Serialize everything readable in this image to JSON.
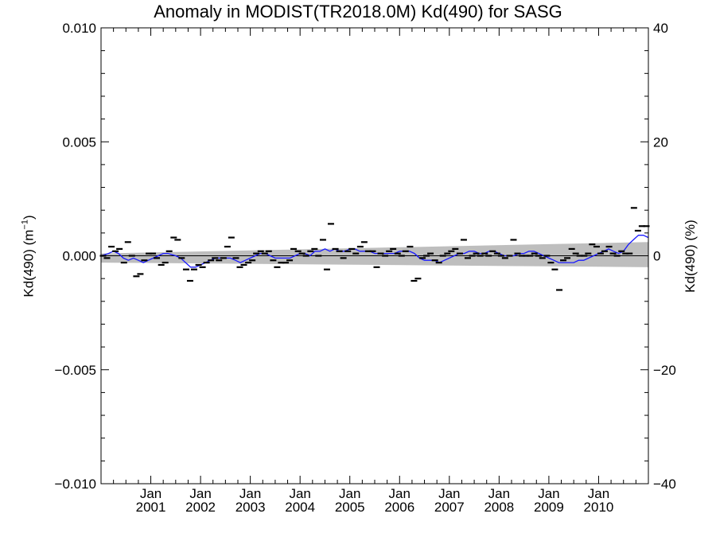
{
  "chart_data": {
    "type": "scatter",
    "title": "Anomaly in MODIST(TR2018.0M) Kd(490) for SASG",
    "ylabel_left": "Kd(490) (m",
    "ylabel_left_unit_exp": "−1",
    "ylabel_left_close": ")",
    "ylabel_right": "Kd(490) (%)",
    "xlim": [
      2000.0,
      2011.0
    ],
    "ylim_left": [
      -0.01,
      0.01
    ],
    "ylim_right": [
      -40,
      40
    ],
    "yticks_left": [
      {
        "value": 0.01,
        "label": "0.010"
      },
      {
        "value": 0.005,
        "label": "0.005"
      },
      {
        "value": 0.0,
        "label": "0.000"
      },
      {
        "value": -0.005,
        "label": "−0.005"
      },
      {
        "value": -0.01,
        "label": "−0.010"
      }
    ],
    "yticks_right": [
      {
        "value": 40,
        "label": "40"
      },
      {
        "value": 20,
        "label": "20"
      },
      {
        "value": 0,
        "label": "0"
      },
      {
        "value": -20,
        "label": "−20"
      },
      {
        "value": -40,
        "label": "−40"
      }
    ],
    "xticks": [
      {
        "value": 2001.0,
        "month": "Jan",
        "year": "2001"
      },
      {
        "value": 2002.0,
        "month": "Jan",
        "year": "2002"
      },
      {
        "value": 2003.0,
        "month": "Jan",
        "year": "2003"
      },
      {
        "value": 2004.0,
        "month": "Jan",
        "year": "2004"
      },
      {
        "value": 2005.0,
        "month": "Jan",
        "year": "2005"
      },
      {
        "value": 2006.0,
        "month": "Jan",
        "year": "2006"
      },
      {
        "value": 2007.0,
        "month": "Jan",
        "year": "2007"
      },
      {
        "value": 2008.0,
        "month": "Jan",
        "year": "2008"
      },
      {
        "value": 2009.0,
        "month": "Jan",
        "year": "2009"
      },
      {
        "value": 2010.0,
        "month": "Jan",
        "year": "2010"
      }
    ],
    "grid": false,
    "zero_line": {
      "value": 0.0,
      "color": "#000000"
    },
    "trend_band": {
      "x": [
        2000.0,
        2011.0
      ],
      "upper": [
        0.0001,
        0.0006
      ],
      "lower": [
        -0.0003,
        -0.0005
      ],
      "color": "#bebebe"
    },
    "monthly_anomalies": {
      "color": "#000000",
      "points": [
        [
          2000.04,
          0.0
        ],
        [
          2000.12,
          -0.0001
        ],
        [
          2000.21,
          0.0004
        ],
        [
          2000.29,
          0.0002
        ],
        [
          2000.37,
          0.0003
        ],
        [
          2000.46,
          -0.0003
        ],
        [
          2000.54,
          0.0006
        ],
        [
          2000.62,
          0.0
        ],
        [
          2000.71,
          -0.0009
        ],
        [
          2000.79,
          -0.0008
        ],
        [
          2000.87,
          -0.0002
        ],
        [
          2000.96,
          0.0001
        ],
        [
          2001.04,
          0.0001
        ],
        [
          2001.12,
          -0.0001
        ],
        [
          2001.21,
          -0.0004
        ],
        [
          2001.29,
          -0.0003
        ],
        [
          2001.37,
          0.0002
        ],
        [
          2001.46,
          0.0008
        ],
        [
          2001.54,
          0.0007
        ],
        [
          2001.62,
          -0.0001
        ],
        [
          2001.71,
          -0.0006
        ],
        [
          2001.79,
          -0.0011
        ],
        [
          2001.87,
          -0.0006
        ],
        [
          2001.96,
          -0.0004
        ],
        [
          2002.04,
          -0.0005
        ],
        [
          2002.12,
          -0.0003
        ],
        [
          2002.21,
          -0.0002
        ],
        [
          2002.29,
          -0.0001
        ],
        [
          2002.37,
          -0.0002
        ],
        [
          2002.46,
          -0.0001
        ],
        [
          2002.54,
          0.0004
        ],
        [
          2002.62,
          0.0008
        ],
        [
          2002.71,
          -0.0001
        ],
        [
          2002.79,
          -0.0005
        ],
        [
          2002.87,
          -0.0004
        ],
        [
          2002.96,
          -0.0003
        ],
        [
          2003.04,
          -0.0002
        ],
        [
          2003.12,
          0.0001
        ],
        [
          2003.21,
          0.0002
        ],
        [
          2003.29,
          0.0001
        ],
        [
          2003.37,
          0.0002
        ],
        [
          2003.46,
          -0.0002
        ],
        [
          2003.54,
          -0.0005
        ],
        [
          2003.62,
          -0.0003
        ],
        [
          2003.71,
          -0.0003
        ],
        [
          2003.79,
          -0.0002
        ],
        [
          2003.87,
          0.0003
        ],
        [
          2003.96,
          0.0002
        ],
        [
          2004.04,
          0.0001
        ],
        [
          2004.12,
          0.0
        ],
        [
          2004.21,
          0.0002
        ],
        [
          2004.29,
          0.0003
        ],
        [
          2004.37,
          0.0
        ],
        [
          2004.46,
          0.0007
        ],
        [
          2004.54,
          -0.0006
        ],
        [
          2004.62,
          0.0014
        ],
        [
          2004.71,
          0.0003
        ],
        [
          2004.79,
          0.0002
        ],
        [
          2004.87,
          -0.0001
        ],
        [
          2004.96,
          0.0002
        ],
        [
          2005.04,
          0.0003
        ],
        [
          2005.12,
          0.0001
        ],
        [
          2005.21,
          0.0004
        ],
        [
          2005.29,
          0.0006
        ],
        [
          2005.37,
          0.0002
        ],
        [
          2005.46,
          0.0002
        ],
        [
          2005.54,
          -0.0005
        ],
        [
          2005.62,
          0.0001
        ],
        [
          2005.71,
          0.0
        ],
        [
          2005.79,
          0.0002
        ],
        [
          2005.87,
          0.0003
        ],
        [
          2005.96,
          0.0001
        ],
        [
          2006.04,
          0.0
        ],
        [
          2006.12,
          0.0002
        ],
        [
          2006.21,
          0.0004
        ],
        [
          2006.29,
          -0.0011
        ],
        [
          2006.37,
          -0.001
        ],
        [
          2006.46,
          -0.0001
        ],
        [
          2006.54,
          0.0
        ],
        [
          2006.62,
          0.0001
        ],
        [
          2006.71,
          -0.0002
        ],
        [
          2006.79,
          -0.0003
        ],
        [
          2006.87,
          0.0
        ],
        [
          2006.96,
          0.0001
        ],
        [
          2007.04,
          0.0002
        ],
        [
          2007.12,
          0.0003
        ],
        [
          2007.21,
          0.0001
        ],
        [
          2007.29,
          0.0007
        ],
        [
          2007.37,
          -0.0001
        ],
        [
          2007.46,
          0.0
        ],
        [
          2007.54,
          0.0001
        ],
        [
          2007.62,
          0.0
        ],
        [
          2007.71,
          0.0001
        ],
        [
          2007.79,
          0.0
        ],
        [
          2007.87,
          0.0002
        ],
        [
          2007.96,
          0.0001
        ],
        [
          2008.04,
          0.0
        ],
        [
          2008.12,
          -0.0001
        ],
        [
          2008.21,
          0.0
        ],
        [
          2008.29,
          0.0007
        ],
        [
          2008.37,
          0.0001
        ],
        [
          2008.46,
          0.0
        ],
        [
          2008.54,
          0.0
        ],
        [
          2008.62,
          0.0
        ],
        [
          2008.71,
          0.0001
        ],
        [
          2008.79,
          0.0
        ],
        [
          2008.87,
          -0.0001
        ],
        [
          2008.96,
          0.0
        ],
        [
          2009.04,
          -0.0003
        ],
        [
          2009.12,
          -0.0006
        ],
        [
          2009.21,
          -0.0015
        ],
        [
          2009.29,
          -0.0002
        ],
        [
          2009.37,
          -0.0001
        ],
        [
          2009.46,
          0.0003
        ],
        [
          2009.54,
          0.0001
        ],
        [
          2009.62,
          0.0
        ],
        [
          2009.71,
          0.0
        ],
        [
          2009.79,
          0.0001
        ],
        [
          2009.87,
          0.0005
        ],
        [
          2009.96,
          0.0004
        ],
        [
          2010.04,
          0.0001
        ],
        [
          2010.12,
          0.0002
        ],
        [
          2010.21,
          0.0004
        ],
        [
          2010.29,
          0.0001
        ],
        [
          2010.37,
          0.0
        ],
        [
          2010.46,
          0.0002
        ],
        [
          2010.54,
          0.0001
        ],
        [
          2010.62,
          0.0001
        ],
        [
          2010.71,
          0.0021
        ],
        [
          2010.79,
          0.0011
        ],
        [
          2010.87,
          0.0013
        ],
        [
          2010.96,
          0.0013
        ]
      ]
    },
    "smoothed_series": {
      "color": "#1a1aff",
      "x": [
        2000.0,
        2000.15,
        2000.25,
        2000.35,
        2000.45,
        2000.55,
        2000.65,
        2000.75,
        2000.85,
        2000.95,
        2001.05,
        2001.15,
        2001.25,
        2001.35,
        2001.5,
        2001.6,
        2001.7,
        2001.8,
        2001.9,
        2002.0,
        2002.1,
        2002.2,
        2002.3,
        2002.4,
        2002.5,
        2002.6,
        2002.7,
        2002.8,
        2002.9,
        2003.0,
        2003.1,
        2003.2,
        2003.3,
        2003.4,
        2003.5,
        2003.6,
        2003.7,
        2003.8,
        2003.9,
        2004.0,
        2004.1,
        2004.2,
        2004.3,
        2004.4,
        2004.5,
        2004.6,
        2004.7,
        2004.8,
        2004.9,
        2005.0,
        2005.1,
        2005.2,
        2005.3,
        2005.4,
        2005.5,
        2005.6,
        2005.7,
        2005.8,
        2005.9,
        2006.0,
        2006.1,
        2006.2,
        2006.3,
        2006.4,
        2006.5,
        2006.6,
        2006.7,
        2006.8,
        2006.9,
        2007.0,
        2007.1,
        2007.2,
        2007.3,
        2007.4,
        2007.5,
        2007.6,
        2007.7,
        2007.8,
        2007.9,
        2008.0,
        2008.1,
        2008.2,
        2008.3,
        2008.4,
        2008.5,
        2008.6,
        2008.7,
        2008.8,
        2008.9,
        2009.0,
        2009.1,
        2009.2,
        2009.3,
        2009.4,
        2009.5,
        2009.6,
        2009.7,
        2009.8,
        2009.9,
        2010.0,
        2010.1,
        2010.2,
        2010.3,
        2010.4,
        2010.5,
        2010.6,
        2010.7,
        2010.8,
        2010.9,
        2011.0
      ],
      "y": [
        0.0,
        0.0001,
        0.0002,
        0.0001,
        -0.0001,
        -0.0002,
        -0.0001,
        -0.0002,
        -0.0003,
        -0.0002,
        -0.0001,
        0.0,
        0.0001,
        0.0001,
        0.0,
        -0.0001,
        -0.0003,
        -0.0005,
        -0.0005,
        -0.0004,
        -0.0003,
        -0.0002,
        -0.0001,
        -0.0001,
        -0.0001,
        -0.0001,
        -0.0002,
        -0.0003,
        -0.0002,
        -0.0001,
        0.0,
        0.0001,
        0.0001,
        0.0,
        -0.0001,
        -0.0001,
        -0.0001,
        -0.0001,
        0.0,
        0.0001,
        0.0001,
        0.0,
        0.0002,
        0.0002,
        0.0003,
        0.0002,
        0.0003,
        0.0002,
        0.0002,
        0.0003,
        0.0003,
        0.0002,
        0.0002,
        0.0002,
        0.0001,
        0.0001,
        0.0001,
        0.0001,
        0.0001,
        0.0002,
        0.0002,
        0.0002,
        0.0001,
        -0.0001,
        -0.0002,
        -0.0002,
        -0.0002,
        -0.0003,
        -0.0002,
        -0.0001,
        0.0,
        0.0001,
        0.0001,
        0.0002,
        0.0002,
        0.0001,
        0.0001,
        0.0002,
        0.0002,
        0.0001,
        0.0,
        0.0,
        0.0,
        0.0001,
        0.0001,
        0.0002,
        0.0002,
        0.0001,
        0.0,
        -0.0001,
        -0.0002,
        -0.0003,
        -0.0003,
        -0.0003,
        -0.0003,
        -0.0002,
        -0.0002,
        -0.0001,
        0.0,
        0.0001,
        0.0002,
        0.0003,
        0.0002,
        0.0001,
        0.0002,
        0.0005,
        0.0007,
        0.0009,
        0.0009,
        0.0008
      ]
    }
  }
}
